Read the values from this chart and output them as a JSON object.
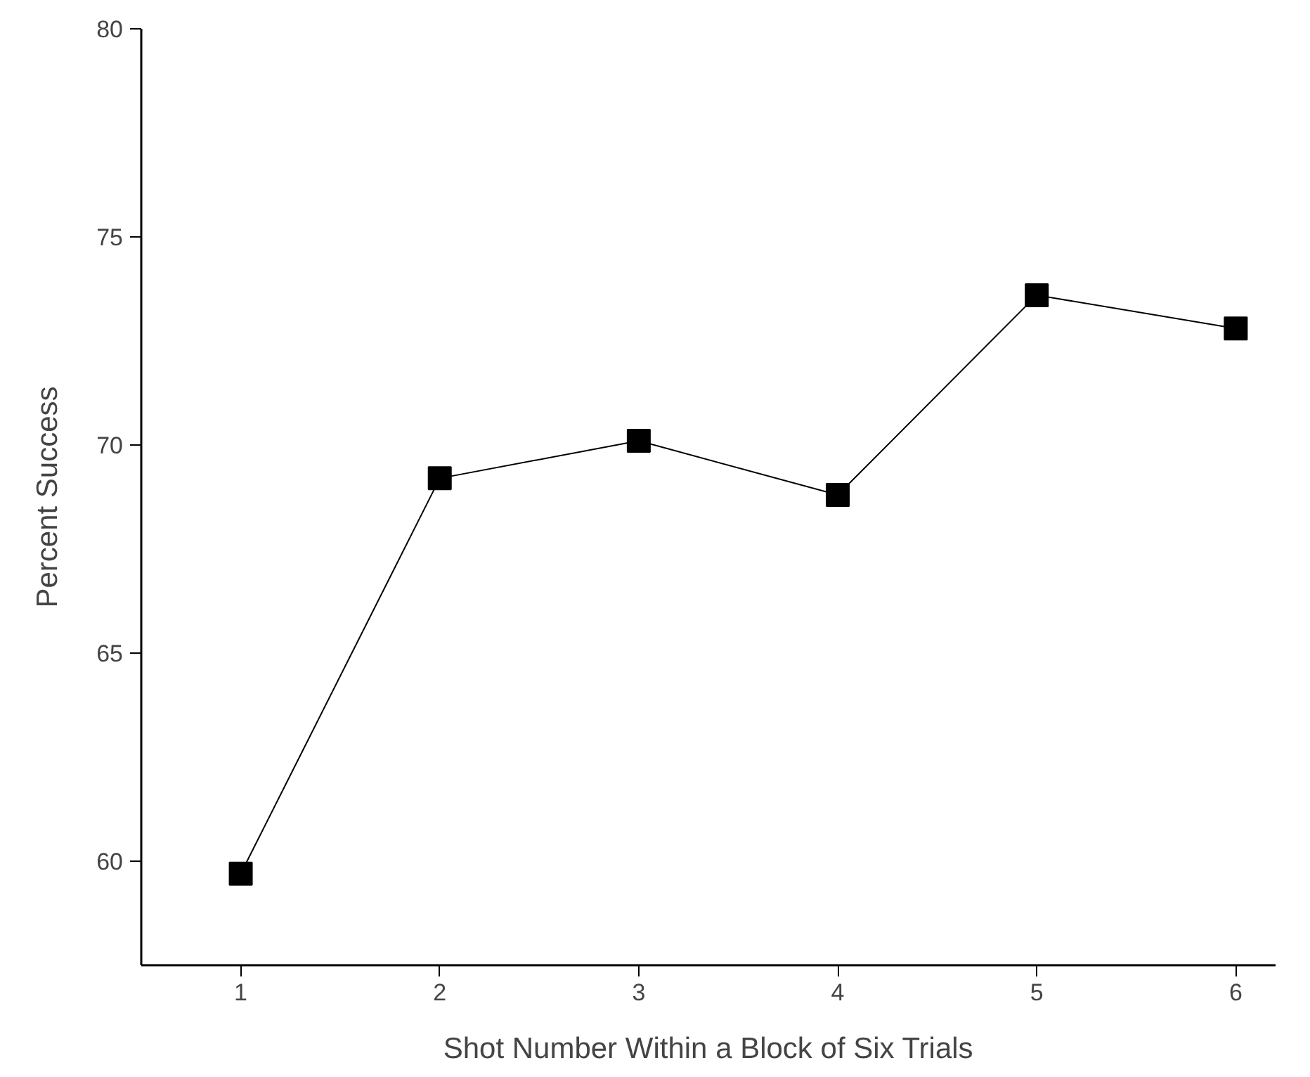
{
  "chart_data": {
    "type": "line",
    "xlabel": "Shot Number Within a Block of Six Trials",
    "ylabel": "Percent Success",
    "x": [
      1,
      2,
      3,
      4,
      5,
      6
    ],
    "series": [
      {
        "color": "#000000",
        "values": [
          59.7,
          69.2,
          70.1,
          68.8,
          73.6,
          72.8
        ]
      }
    ],
    "xlim": [
      0.5,
      6.2
    ],
    "xticks": [
      1,
      2,
      3,
      4,
      5,
      6
    ],
    "ylim": [
      57.5,
      80
    ],
    "yticks": [
      60,
      65,
      70,
      75,
      80
    ],
    "marker": "square",
    "line_style": "solid"
  }
}
